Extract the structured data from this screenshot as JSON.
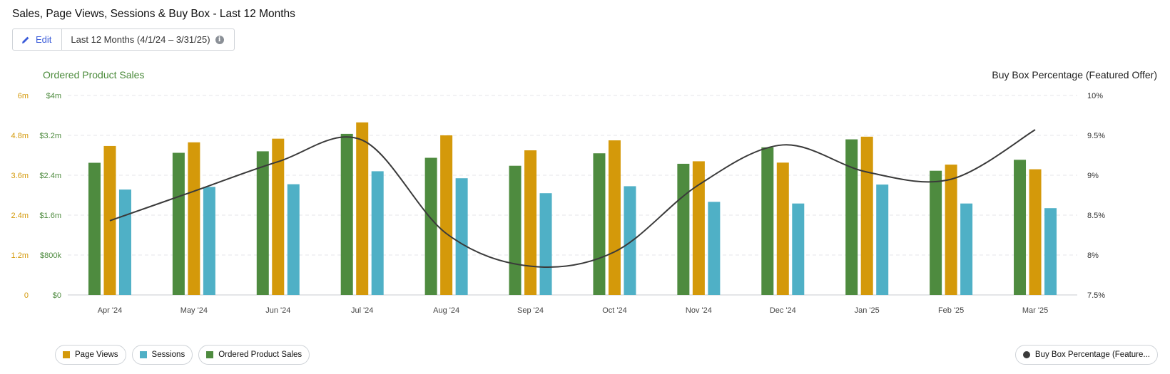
{
  "header": {
    "title": "Sales, Page Views, Sessions & Buy Box - Last 12 Months",
    "edit_label": "Edit",
    "range_label": "Last 12 Months (4/1/24 – 3/31/25)"
  },
  "axis_titles": {
    "left": "Ordered Product Sales",
    "right": "Buy Box Percentage (Featured Offer)"
  },
  "colors": {
    "page_views": "#d4990a",
    "sessions": "#4fb0c6",
    "sales": "#4e8b3f",
    "buy_box": "#3a3a3a",
    "pv_axis": "#d4990a",
    "sales_axis": "#4e8b3f",
    "edit": "#3a5bd9"
  },
  "legend": {
    "page_views": "Page Views",
    "sessions": "Sessions",
    "sales": "Ordered Product Sales",
    "buy_box": "Buy Box Percentage (Feature..."
  },
  "chart_data": {
    "type": "bar",
    "categories": [
      "Apr '24",
      "May '24",
      "Jun '24",
      "Jul '24",
      "Aug '24",
      "Sep '24",
      "Oct '24",
      "Nov '24",
      "Dec '24",
      "Jan '25",
      "Feb '25",
      "Mar '25"
    ],
    "series": [
      {
        "name": "Ordered Product Sales",
        "axis": "sales",
        "values": [
          2650000,
          2850000,
          2880000,
          3230000,
          2750000,
          2590000,
          2840000,
          2630000,
          2960000,
          3120000,
          2490000,
          2710000
        ]
      },
      {
        "name": "Page Views",
        "axis": "page_views",
        "values": [
          4480000,
          4590000,
          4700000,
          5190000,
          4800000,
          4350000,
          4650000,
          4020000,
          3980000,
          4760000,
          3920000,
          3780000
        ]
      },
      {
        "name": "Sessions",
        "axis": "sessions",
        "values": [
          3170000,
          3250000,
          3330000,
          3720000,
          3510000,
          3060000,
          3270000,
          2800000,
          2750000,
          3320000,
          2750000,
          2610000
        ]
      },
      {
        "name": "Buy Box Percentage (Featured Offer)",
        "type": "line",
        "axis": "buy_box",
        "values": [
          8.43,
          8.8,
          9.17,
          9.44,
          8.27,
          7.86,
          8.04,
          8.88,
          9.38,
          9.04,
          8.95,
          9.57
        ]
      }
    ],
    "axes": {
      "pv_ticks": [
        "0",
        "1.2m",
        "2.4m",
        "3.6m",
        "4.8m",
        "6m"
      ],
      "pv_range": [
        0,
        6000000
      ],
      "sales_ticks": [
        "$0",
        "$800k",
        "$1.6m",
        "$2.4m",
        "$3.2m",
        "$4m"
      ],
      "sales_range": [
        0,
        4000000
      ],
      "buy_box_ticks": [
        "7.5%",
        "8%",
        "8.5%",
        "9%",
        "9.5%",
        "10%"
      ],
      "buy_box_range": [
        7.5,
        10
      ]
    },
    "grid": true
  }
}
